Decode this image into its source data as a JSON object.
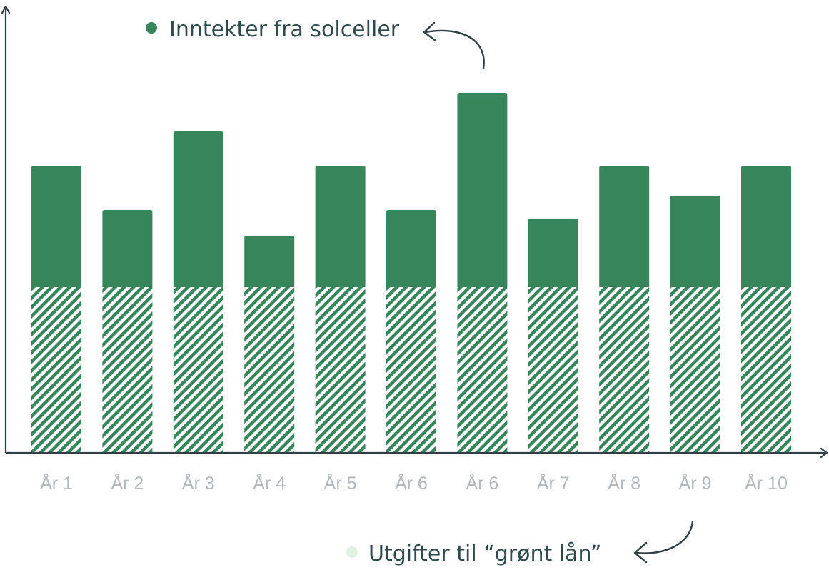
{
  "colors": {
    "income": "#37855a",
    "expense_hatch": "#37855a",
    "expense_marker": "#dff1e4",
    "axis": "#2f3f44",
    "tick_label": "#b3b8bc",
    "legend_text": "#2f4a4c"
  },
  "chart_data": {
    "type": "bar",
    "stacked": true,
    "title": "",
    "xlabel": "",
    "ylabel": "",
    "categories": [
      "År 1",
      "År 2",
      "År 3",
      "År 4",
      "År 5",
      "År 6",
      "År 6",
      "År 7",
      "År 8",
      "År 9",
      "År 10"
    ],
    "series": [
      {
        "name": "Utgifter til “grønt lån”",
        "pattern": "hatched",
        "values": [
          232,
          232,
          232,
          232,
          232,
          232,
          232,
          232,
          232,
          232,
          232
        ]
      },
      {
        "name": "Inntekter fra solceller",
        "pattern": "solid",
        "values": [
          170,
          108,
          218,
          72,
          170,
          108,
          272,
          96,
          170,
          128,
          170
        ]
      }
    ],
    "ylim": [
      0,
      630
    ],
    "y_axis_ticks": "none",
    "grid": false,
    "legend": [
      {
        "label": "Inntekter fra solceller",
        "placement": "top",
        "series": 1
      },
      {
        "label": "Utgifter til “grønt lån”",
        "placement": "bottom",
        "series": 0
      }
    ]
  }
}
